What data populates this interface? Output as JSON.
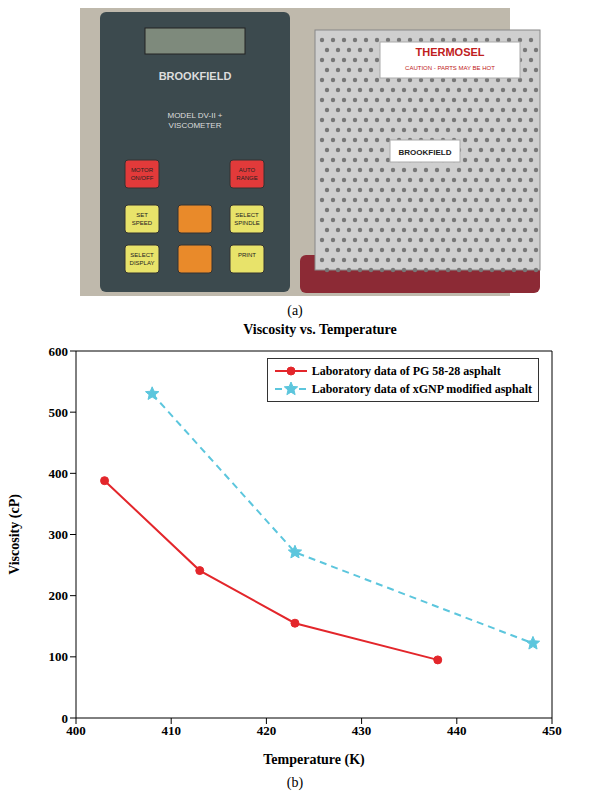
{
  "photo": {
    "label": "(a)",
    "texts": [
      "BROOKFIELD",
      "MODEL DV-II +",
      "VISCOMETER",
      "MOTOR ON/OFF",
      "AUTO RANGE",
      "SET SPEED",
      "SELECT SPINDLE",
      "SELECT DISPLAY",
      "PRINT",
      "THERMOSEL",
      "CAUTION - PARTS MAY BE HOT",
      "BROOKFIELD"
    ]
  },
  "chart_panel": {
    "label": "(b)"
  },
  "chart_data": {
    "type": "line",
    "title": "Viscosity vs. Temperature",
    "x_label": "Temperature (K)",
    "y_label": "Viscosity (cP)",
    "xlim": [
      400,
      450
    ],
    "xticks": [
      400,
      410,
      420,
      430,
      440,
      450
    ],
    "ylim": [
      0,
      600
    ],
    "yticks": [
      0,
      100,
      200,
      300,
      400,
      500,
      600
    ],
    "grid": false,
    "legend": "upper right",
    "series": [
      {
        "name": "Laboratory data of PG 58-28 asphalt",
        "color": "#e3262b",
        "marker": "circle",
        "line_style": "solid",
        "x": [
          403,
          413,
          423,
          438
        ],
        "values": [
          388,
          241,
          155,
          95
        ]
      },
      {
        "name": "Laboratory data of xGNP modified asphalt",
        "color": "#5cc6dd",
        "marker": "star",
        "line_style": "dashed",
        "x": [
          408,
          423,
          448
        ],
        "values": [
          530,
          271,
          122
        ]
      }
    ]
  }
}
